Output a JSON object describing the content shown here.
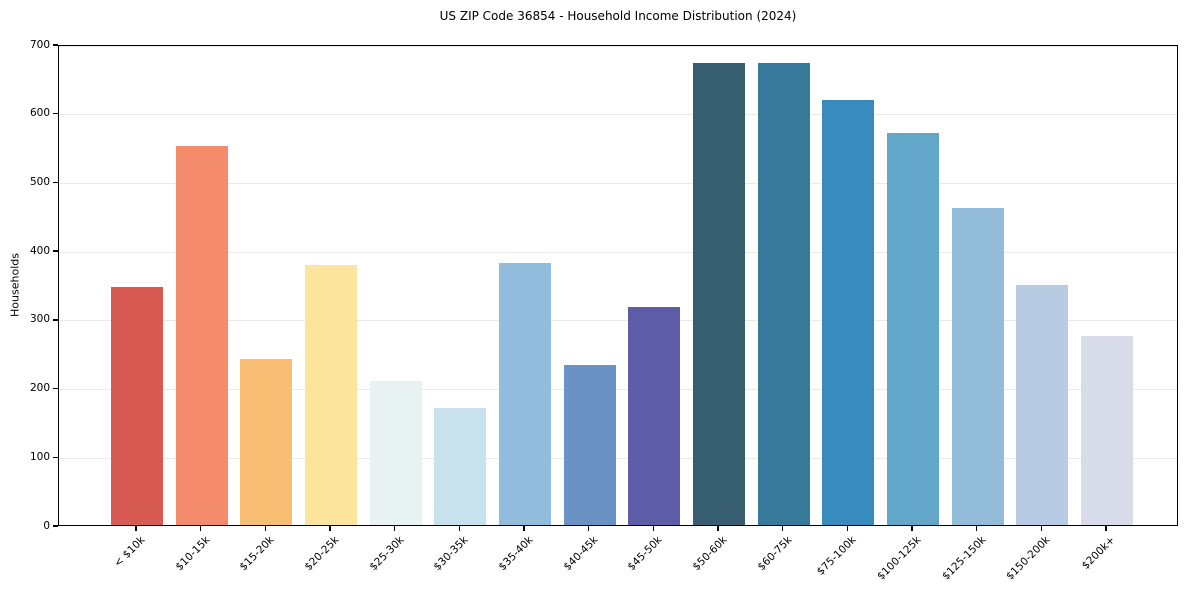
{
  "chart_data": {
    "type": "bar",
    "title": "US ZIP Code 36854 - Household Income Distribution (2024)",
    "xlabel": "",
    "ylabel": "Households",
    "categories": [
      "< $10k",
      "$10-15k",
      "$15-20k",
      "$20-25k",
      "$25-30k",
      "$30-35k",
      "$35-40k",
      "$40-45k",
      "$45-50k",
      "$50-60k",
      "$60-75k",
      "$75-100k",
      "$100-125k",
      "$125-150k",
      "$150-200k",
      "$200k+"
    ],
    "values": [
      347,
      551,
      241,
      379,
      209,
      171,
      382,
      233,
      317,
      672,
      672,
      619,
      571,
      462,
      350,
      275
    ],
    "bar_colors": [
      "#d75b53",
      "#f38b6c",
      "#fabd74",
      "#fde49c",
      "#e8f2f3",
      "#c7e2ec",
      "#92bcdb",
      "#6a92c5",
      "#5c5da6",
      "#365e70",
      "#377a9c",
      "#388cbd",
      "#62a7c9",
      "#92bcd9",
      "#b8cbe3",
      "#d8dbea"
    ],
    "ylim": [
      0,
      700
    ],
    "yticks": [
      0,
      100,
      200,
      300,
      400,
      500,
      600,
      700
    ],
    "grid": "horizontal",
    "legend": "none",
    "background": "#ffffff"
  }
}
